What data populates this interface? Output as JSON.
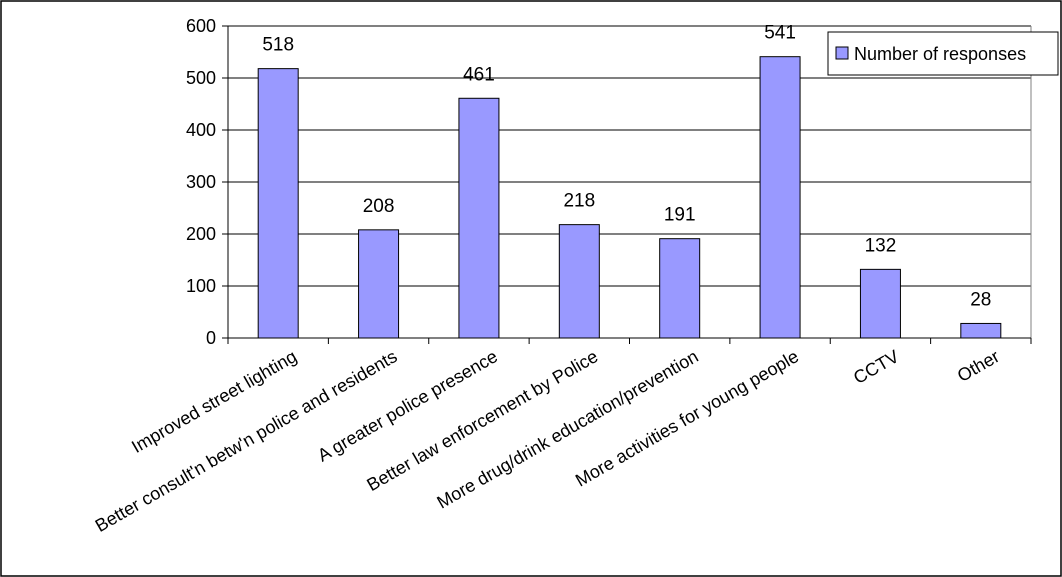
{
  "chart_data": {
    "type": "bar",
    "categories": [
      "Improved street lighting",
      "Better consult'n betw'n police and residents",
      "A greater police presence",
      "Better law enforcement by Police",
      "More drug/drink education/prevention",
      "More activities for young people",
      "CCTV",
      "Other"
    ],
    "series": [
      {
        "name": "Number of responses",
        "values": [
          518,
          208,
          461,
          218,
          191,
          541,
          132,
          28
        ]
      }
    ],
    "ylim": [
      0,
      600
    ],
    "yticks": [
      0,
      100,
      200,
      300,
      400,
      500,
      600
    ],
    "grid": true,
    "legend": "top-right",
    "colors": {
      "bar": "#9999ff",
      "bar_stroke": "#000000",
      "grid": "#000000",
      "frame": "#000000"
    }
  }
}
